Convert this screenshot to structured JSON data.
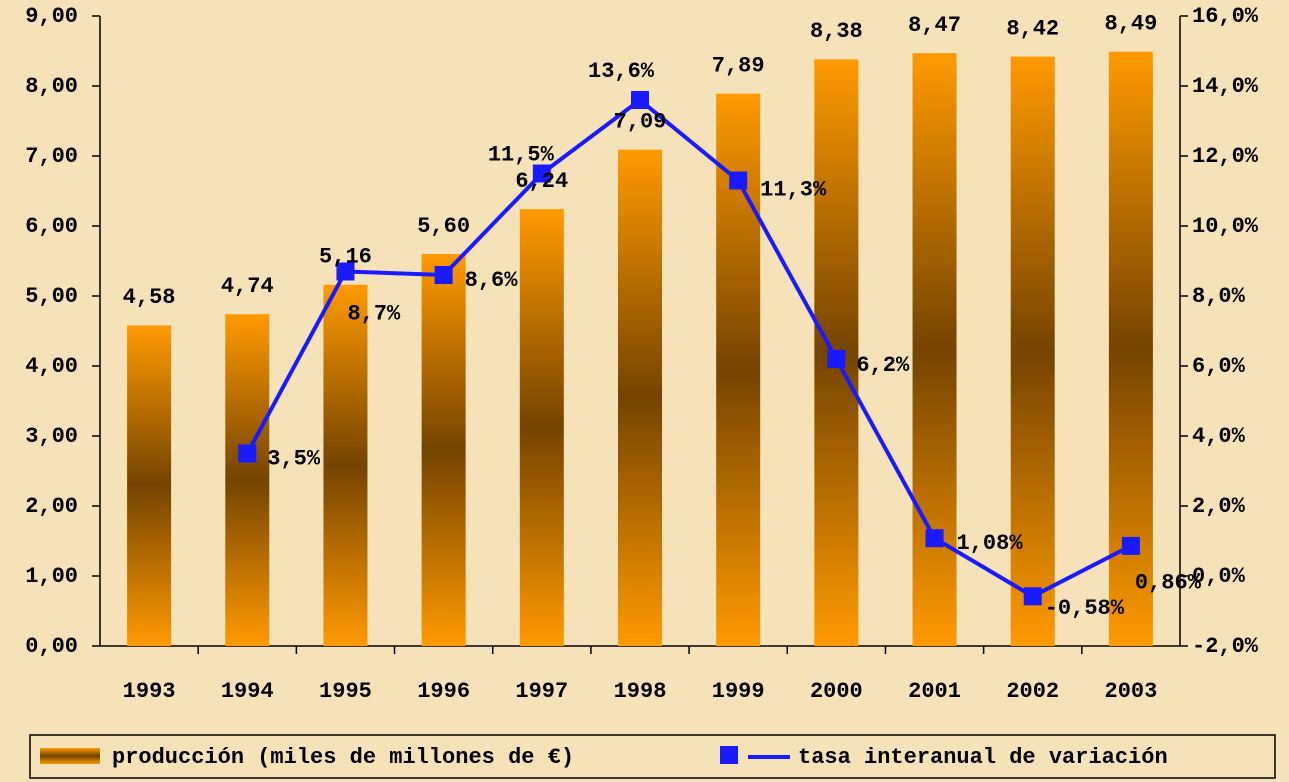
{
  "chart_data": {
    "type": "bar",
    "categories": [
      "1993",
      "1994",
      "1995",
      "1996",
      "1997",
      "1998",
      "1999",
      "2000",
      "2001",
      "2002",
      "2003"
    ],
    "series": [
      {
        "name": "producción (miles de millones de €)",
        "type": "bar",
        "color": "#f59a0c",
        "values": [
          4.58,
          4.74,
          5.16,
          5.6,
          6.24,
          7.09,
          7.89,
          8.38,
          8.47,
          8.42,
          8.49
        ],
        "value_labels": [
          "4,58",
          "4,74",
          "5,16",
          "5,60",
          "6,24",
          "7,09",
          "7,89",
          "8,38",
          "8,47",
          "8,42",
          "8,49"
        ]
      },
      {
        "name": "tasa interanual de variación",
        "type": "line",
        "axis": "y2",
        "color": "#1a1aff",
        "values": [
          null,
          3.5,
          8.7,
          8.6,
          11.5,
          13.6,
          11.3,
          6.2,
          1.08,
          -0.58,
          0.86
        ],
        "value_labels": [
          null,
          "3,5%",
          "8,7%",
          "8,6%",
          "11,5%",
          "13,6%",
          "11,3%",
          "6,2%",
          "1,08%",
          "-0,58%",
          "0,86%"
        ]
      }
    ],
    "ylim": [
      0,
      9
    ],
    "yticks": [
      {
        "value": 0,
        "label": "0,00"
      },
      {
        "value": 1,
        "label": "1,00"
      },
      {
        "value": 2,
        "label": "2,00"
      },
      {
        "value": 3,
        "label": "3,00"
      },
      {
        "value": 4,
        "label": "4,00"
      },
      {
        "value": 5,
        "label": "5,00"
      },
      {
        "value": 6,
        "label": "6,00"
      },
      {
        "value": 7,
        "label": "7,00"
      },
      {
        "value": 8,
        "label": "8,00"
      },
      {
        "value": 9,
        "label": "9,00"
      }
    ],
    "y2lim": [
      -2,
      16
    ],
    "y2ticks": [
      {
        "value": -2,
        "label": "-2,0%"
      },
      {
        "value": 0,
        "label": "0,0%"
      },
      {
        "value": 2,
        "label": "2,0%"
      },
      {
        "value": 4,
        "label": "4,0%"
      },
      {
        "value": 6,
        "label": "6,0%"
      },
      {
        "value": 8,
        "label": "8,0%"
      },
      {
        "value": 10,
        "label": "10,0%"
      },
      {
        "value": 12,
        "label": "12,0%"
      },
      {
        "value": 14,
        "label": "14,0%"
      },
      {
        "value": 16,
        "label": "16,0%"
      }
    ],
    "legend": "bottom"
  }
}
